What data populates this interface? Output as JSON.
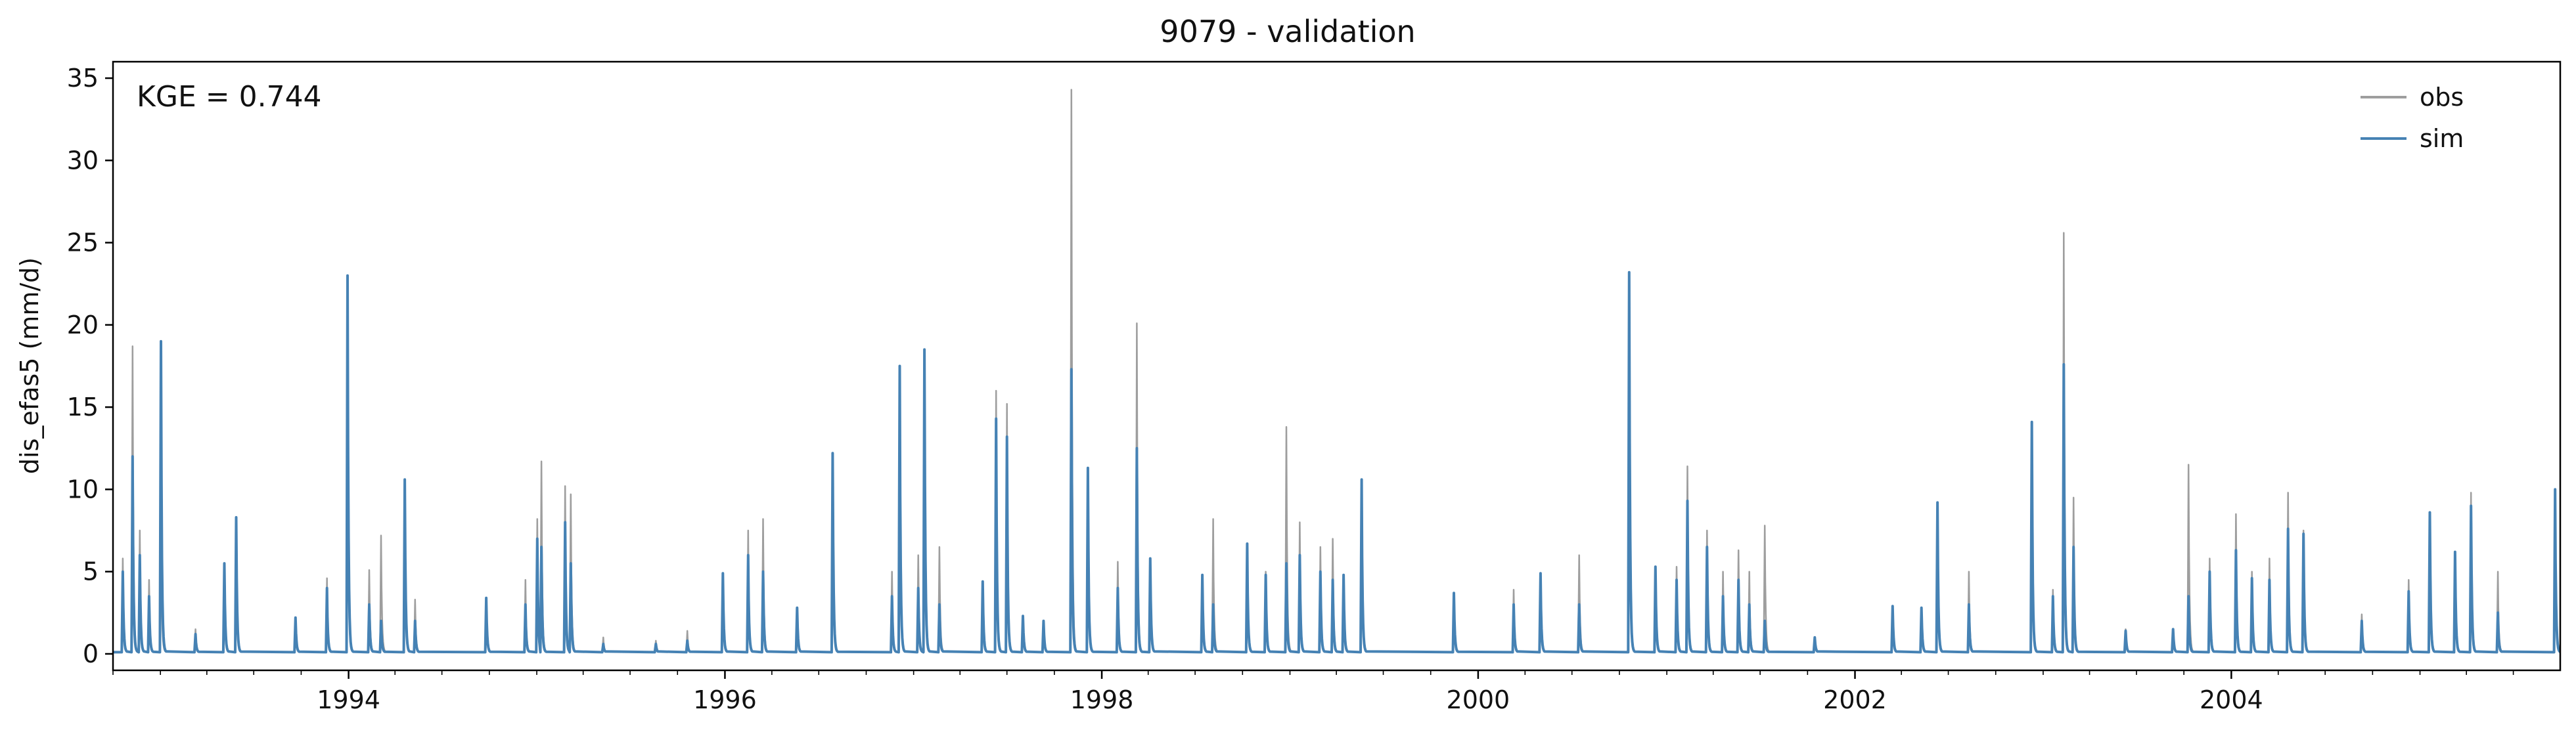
{
  "chart_data": {
    "type": "line",
    "title": "9079 - validation",
    "ylabel": "dis_efas5 (mm/d)",
    "xlabel": "",
    "annotation": "KGE = 0.744",
    "xlim": [
      "1992-10-01",
      "2005-09-30"
    ],
    "ylim": [
      -1,
      36
    ],
    "xticks": [
      {
        "date": "1994-01-01",
        "label": "1994"
      },
      {
        "date": "1996-01-01",
        "label": "1996"
      },
      {
        "date": "1998-01-01",
        "label": "1998"
      },
      {
        "date": "2000-01-01",
        "label": "2000"
      },
      {
        "date": "2002-01-01",
        "label": "2002"
      },
      {
        "date": "2004-01-01",
        "label": "2004"
      }
    ],
    "yticks": [
      0,
      5,
      10,
      15,
      20,
      25,
      30,
      35
    ],
    "grid": false,
    "legend_position": "top-right",
    "baseflow": 0.1,
    "series": [
      {
        "name": "obs",
        "color": "#9e9e9e",
        "peaks": [
          [
            "1992-10-20",
            5.8
          ],
          [
            "1992-11-08",
            18.7
          ],
          [
            "1992-11-22",
            7.5
          ],
          [
            "1992-12-10",
            4.5
          ],
          [
            "1993-01-02",
            8.5
          ],
          [
            "1993-03-10",
            1.5
          ],
          [
            "1993-05-05",
            5.2
          ],
          [
            "1993-05-28",
            8.0
          ],
          [
            "1993-09-20",
            2.0
          ],
          [
            "1993-11-20",
            4.6
          ],
          [
            "1993-12-30",
            22.7
          ],
          [
            "1994-02-10",
            5.1
          ],
          [
            "1994-03-05",
            7.2
          ],
          [
            "1994-04-20",
            9.0
          ],
          [
            "1994-05-10",
            3.3
          ],
          [
            "1994-09-25",
            3.4
          ],
          [
            "1994-12-10",
            4.5
          ],
          [
            "1995-01-02",
            8.2
          ],
          [
            "1995-01-10",
            11.7
          ],
          [
            "1995-02-25",
            10.2
          ],
          [
            "1995-03-08",
            9.7
          ],
          [
            "1995-05-10",
            1.0
          ],
          [
            "1995-08-20",
            0.8
          ],
          [
            "1995-10-20",
            1.4
          ],
          [
            "1995-12-28",
            4.6
          ],
          [
            "1996-02-15",
            7.5
          ],
          [
            "1996-03-15",
            8.2
          ],
          [
            "1996-05-20",
            2.5
          ],
          [
            "1996-07-28",
            12.0
          ],
          [
            "1996-11-20",
            5.0
          ],
          [
            "1996-12-05",
            17.3
          ],
          [
            "1997-01-10",
            6.0
          ],
          [
            "1997-01-22",
            18.3
          ],
          [
            "1997-02-20",
            6.5
          ],
          [
            "1997-05-15",
            2.5
          ],
          [
            "1997-06-10",
            16.0
          ],
          [
            "1997-07-01",
            15.2
          ],
          [
            "1997-08-01",
            2.2
          ],
          [
            "1997-09-10",
            2.0
          ],
          [
            "1997-11-03",
            34.3
          ],
          [
            "1997-12-05",
            11.0
          ],
          [
            "1998-02-01",
            5.6
          ],
          [
            "1998-03-10",
            20.1
          ],
          [
            "1998-04-05",
            5.0
          ],
          [
            "1998-07-15",
            4.0
          ],
          [
            "1998-08-05",
            8.2
          ],
          [
            "1998-10-10",
            6.5
          ],
          [
            "1998-11-15",
            5.0
          ],
          [
            "1998-12-25",
            13.8
          ],
          [
            "1999-01-20",
            8.0
          ],
          [
            "1999-03-01",
            6.5
          ],
          [
            "1999-03-25",
            7.0
          ],
          [
            "1999-04-15",
            4.5
          ],
          [
            "1999-05-20",
            10.5
          ],
          [
            "1999-11-15",
            3.5
          ],
          [
            "2000-03-10",
            3.9
          ],
          [
            "2000-05-01",
            4.8
          ],
          [
            "2000-07-15",
            6.0
          ],
          [
            "2000-10-20",
            23.0
          ],
          [
            "2000-12-10",
            5.0
          ],
          [
            "2001-01-20",
            5.3
          ],
          [
            "2001-02-10",
            11.4
          ],
          [
            "2001-03-20",
            7.5
          ],
          [
            "2001-04-20",
            5.0
          ],
          [
            "2001-05-20",
            6.3
          ],
          [
            "2001-06-10",
            5.0
          ],
          [
            "2001-07-10",
            7.8
          ],
          [
            "2001-10-15",
            1.0
          ],
          [
            "2002-03-15",
            2.8
          ],
          [
            "2002-05-10",
            2.5
          ],
          [
            "2002-06-10",
            9.0
          ],
          [
            "2002-08-10",
            5.0
          ],
          [
            "2002-12-10",
            14.0
          ],
          [
            "2003-01-20",
            3.9
          ],
          [
            "2003-02-10",
            25.6
          ],
          [
            "2003-03-01",
            9.5
          ],
          [
            "2003-06-10",
            1.5
          ],
          [
            "2003-09-10",
            1.5
          ],
          [
            "2003-10-10",
            11.5
          ],
          [
            "2003-11-20",
            5.8
          ],
          [
            "2004-01-10",
            8.5
          ],
          [
            "2004-02-10",
            5.0
          ],
          [
            "2004-03-15",
            5.8
          ],
          [
            "2004-04-20",
            9.8
          ],
          [
            "2004-05-20",
            7.5
          ],
          [
            "2004-09-10",
            2.4
          ],
          [
            "2004-12-10",
            4.5
          ],
          [
            "2005-01-20",
            8.5
          ],
          [
            "2005-03-10",
            6.0
          ],
          [
            "2005-04-10",
            9.8
          ],
          [
            "2005-06-01",
            5.0
          ],
          [
            "2005-09-20",
            10.0
          ]
        ]
      },
      {
        "name": "sim",
        "color": "#4682b4",
        "peaks": [
          [
            "1992-10-20",
            5.0
          ],
          [
            "1992-11-08",
            12.0
          ],
          [
            "1992-11-22",
            6.0
          ],
          [
            "1992-12-10",
            3.5
          ],
          [
            "1993-01-02",
            19.0
          ],
          [
            "1993-03-10",
            1.2
          ],
          [
            "1993-05-05",
            5.5
          ],
          [
            "1993-05-28",
            8.3
          ],
          [
            "1993-09-20",
            2.2
          ],
          [
            "1993-11-20",
            4.0
          ],
          [
            "1993-12-30",
            23.0
          ],
          [
            "1994-02-10",
            3.0
          ],
          [
            "1994-03-05",
            2.0
          ],
          [
            "1994-04-20",
            10.6
          ],
          [
            "1994-05-10",
            2.0
          ],
          [
            "1994-09-25",
            3.4
          ],
          [
            "1994-12-10",
            3.0
          ],
          [
            "1995-01-02",
            7.0
          ],
          [
            "1995-01-10",
            6.5
          ],
          [
            "1995-02-25",
            8.0
          ],
          [
            "1995-03-08",
            5.5
          ],
          [
            "1995-05-10",
            0.6
          ],
          [
            "1995-08-20",
            0.6
          ],
          [
            "1995-10-20",
            0.8
          ],
          [
            "1995-12-28",
            4.9
          ],
          [
            "1996-02-15",
            6.0
          ],
          [
            "1996-03-15",
            5.0
          ],
          [
            "1996-05-20",
            2.8
          ],
          [
            "1996-07-28",
            12.2
          ],
          [
            "1996-11-20",
            3.5
          ],
          [
            "1996-12-05",
            17.5
          ],
          [
            "1997-01-10",
            4.0
          ],
          [
            "1997-01-22",
            18.5
          ],
          [
            "1997-02-20",
            3.0
          ],
          [
            "1997-05-15",
            4.4
          ],
          [
            "1997-06-10",
            14.3
          ],
          [
            "1997-07-01",
            13.2
          ],
          [
            "1997-08-01",
            2.3
          ],
          [
            "1997-09-10",
            2.0
          ],
          [
            "1997-11-03",
            17.3
          ],
          [
            "1997-12-05",
            11.3
          ],
          [
            "1998-02-01",
            4.0
          ],
          [
            "1998-03-10",
            12.5
          ],
          [
            "1998-04-05",
            5.8
          ],
          [
            "1998-07-15",
            4.8
          ],
          [
            "1998-08-05",
            3.0
          ],
          [
            "1998-10-10",
            6.7
          ],
          [
            "1998-11-15",
            4.8
          ],
          [
            "1998-12-25",
            5.5
          ],
          [
            "1999-01-20",
            6.0
          ],
          [
            "1999-03-01",
            5.0
          ],
          [
            "1999-03-25",
            4.5
          ],
          [
            "1999-04-15",
            4.8
          ],
          [
            "1999-05-20",
            10.6
          ],
          [
            "1999-11-15",
            3.7
          ],
          [
            "2000-03-10",
            3.0
          ],
          [
            "2000-05-01",
            4.9
          ],
          [
            "2000-07-15",
            3.0
          ],
          [
            "2000-10-20",
            23.2
          ],
          [
            "2000-12-10",
            5.3
          ],
          [
            "2001-01-20",
            4.5
          ],
          [
            "2001-02-10",
            9.3
          ],
          [
            "2001-03-20",
            6.5
          ],
          [
            "2001-04-20",
            3.5
          ],
          [
            "2001-05-20",
            4.5
          ],
          [
            "2001-06-10",
            3.0
          ],
          [
            "2001-07-10",
            2.0
          ],
          [
            "2001-10-15",
            1.0
          ],
          [
            "2002-03-15",
            2.9
          ],
          [
            "2002-05-10",
            2.8
          ],
          [
            "2002-06-10",
            9.2
          ],
          [
            "2002-08-10",
            3.0
          ],
          [
            "2002-12-10",
            14.1
          ],
          [
            "2003-01-20",
            3.5
          ],
          [
            "2003-02-10",
            17.6
          ],
          [
            "2003-03-01",
            6.5
          ],
          [
            "2003-06-10",
            1.4
          ],
          [
            "2003-09-10",
            1.5
          ],
          [
            "2003-10-10",
            3.5
          ],
          [
            "2003-11-20",
            5.0
          ],
          [
            "2004-01-10",
            6.3
          ],
          [
            "2004-02-10",
            4.6
          ],
          [
            "2004-03-15",
            4.5
          ],
          [
            "2004-04-20",
            7.6
          ],
          [
            "2004-05-20",
            7.3
          ],
          [
            "2004-09-10",
            2.0
          ],
          [
            "2004-12-10",
            3.8
          ],
          [
            "2005-01-20",
            8.6
          ],
          [
            "2005-03-10",
            6.2
          ],
          [
            "2005-04-10",
            9.0
          ],
          [
            "2005-06-01",
            2.5
          ],
          [
            "2005-09-20",
            10.0
          ]
        ]
      }
    ]
  }
}
